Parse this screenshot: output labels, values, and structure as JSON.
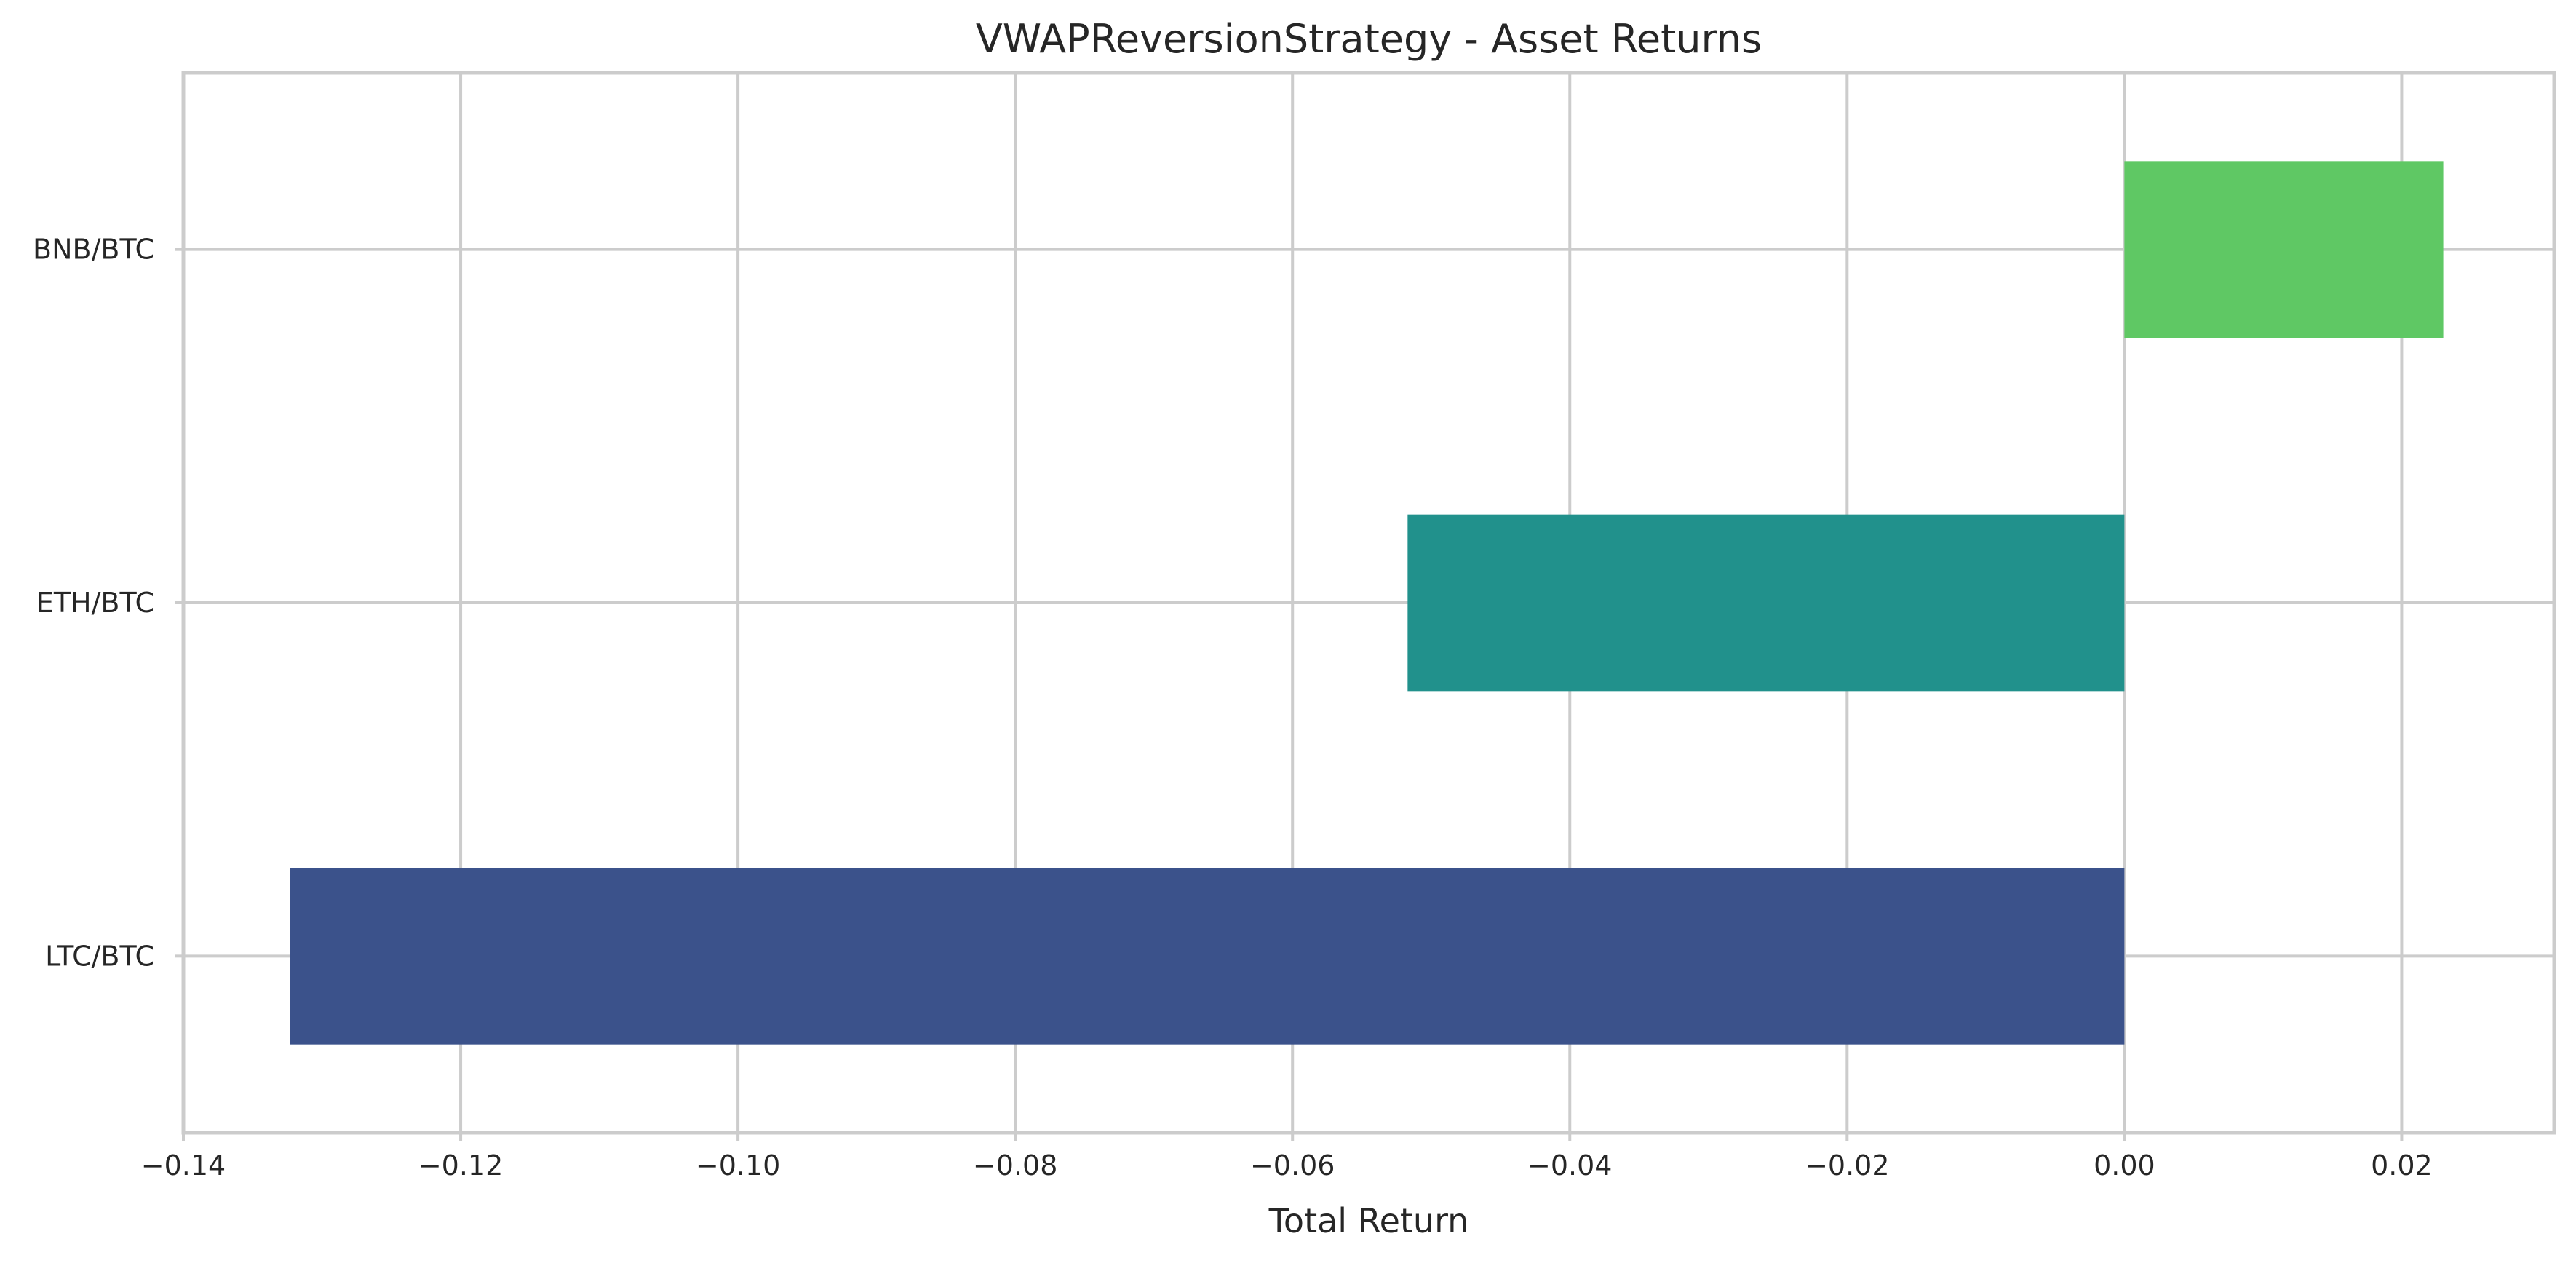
{
  "chart_data": {
    "type": "bar",
    "orientation": "horizontal",
    "title": "VWAPReversionStrategy - Asset Returns",
    "xlabel": "Total Return",
    "ylabel": "",
    "xlim": [
      -0.14,
      0.031
    ],
    "xticks": [
      -0.14,
      -0.12,
      -0.1,
      -0.08,
      -0.06,
      -0.04,
      -0.02,
      0.0,
      0.02
    ],
    "xtick_labels": [
      "−0.14",
      "−0.12",
      "−0.10",
      "−0.08",
      "−0.06",
      "−0.04",
      "−0.02",
      "0.00",
      "0.02"
    ],
    "categories": [
      "BNB/BTC",
      "ETH/BTC",
      "LTC/BTC"
    ],
    "values": [
      0.023,
      -0.0517,
      -0.1323
    ],
    "colors": [
      "#5fc864",
      "#21918c",
      "#3b528b"
    ],
    "grid": true,
    "legend": "none"
  }
}
